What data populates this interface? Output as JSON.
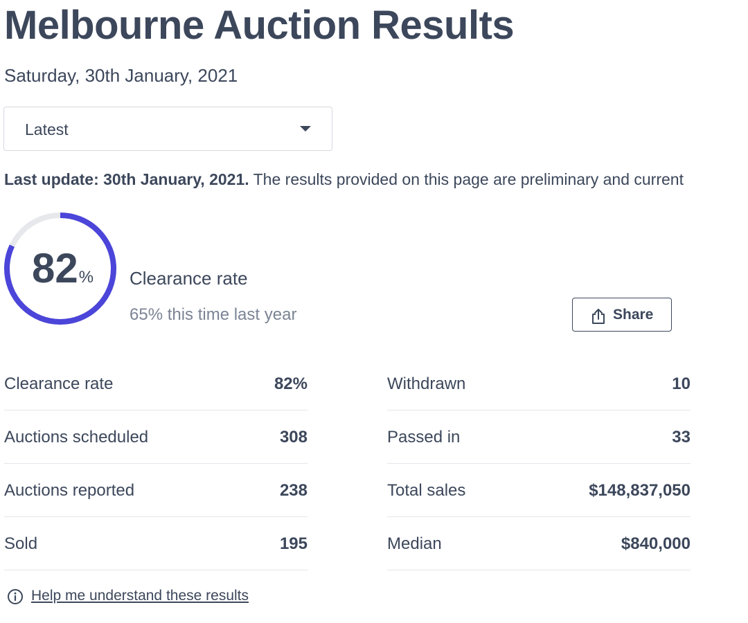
{
  "header": {
    "title": "Melbourne Auction Results",
    "date": "Saturday, 30th January, 2021"
  },
  "selector": {
    "selected": "Latest"
  },
  "update": {
    "bold": "Last update: 30th January, 2021.",
    "text": " The results provided on this page are preliminary and current"
  },
  "summary": {
    "clearance_value": "82",
    "clearance_fraction": 0.82,
    "percent_symbol": "%",
    "label": "Clearance rate",
    "last_year": "65% this time last year",
    "share_label": "Share"
  },
  "stats": {
    "left": [
      {
        "name": "Clearance rate",
        "value": "82%"
      },
      {
        "name": "Auctions scheduled",
        "value": "308"
      },
      {
        "name": "Auctions reported",
        "value": "238"
      },
      {
        "name": "Sold",
        "value": "195"
      }
    ],
    "right": [
      {
        "name": "Withdrawn",
        "value": "10"
      },
      {
        "name": "Passed in",
        "value": "33"
      },
      {
        "name": "Total sales",
        "value": "$148,837,050"
      },
      {
        "name": "Median",
        "value": "$840,000"
      }
    ]
  },
  "help": {
    "link": "Help me understand these results"
  },
  "colors": {
    "accent": "#4b45d9",
    "track": "#e6e8ec",
    "text": "#3c475b"
  },
  "icons": {
    "share": "share-icon",
    "dropdown": "chevron-down-icon",
    "info": "info-icon"
  }
}
